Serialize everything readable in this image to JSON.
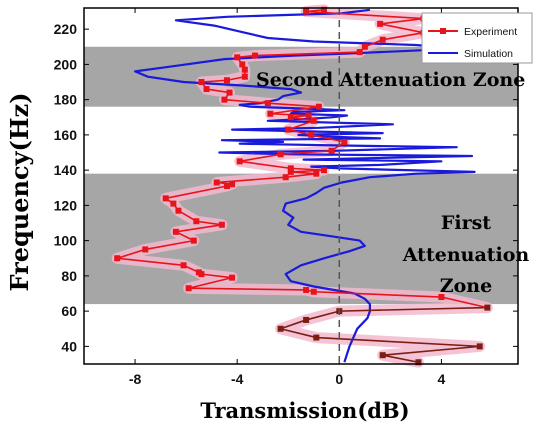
{
  "chart_data": {
    "type": "line",
    "xlabel": "Transmission(dB)",
    "ylabel": "Frequency(Hz)",
    "xlim": [
      -10,
      7
    ],
    "ylim": [
      30,
      232
    ],
    "xticks": [
      -8,
      -4,
      0,
      4
    ],
    "xtick_labels": [
      "-8",
      "-4",
      "0",
      "4"
    ],
    "yticks": [
      40,
      60,
      80,
      100,
      120,
      140,
      160,
      180,
      200,
      220
    ],
    "ytick_labels": [
      "40",
      "60",
      "80",
      "100",
      "120",
      "140",
      "160",
      "180",
      "200",
      "220"
    ],
    "zero_line_x": 0,
    "legend_position": "top-right",
    "zones": [
      {
        "label_lines": [
          "First",
          "Attenuation",
          "Zone"
        ],
        "y_from": 64,
        "y_to": 138,
        "color": "#a6a6a6"
      },
      {
        "label_lines": [
          "Second Attenuation Zone"
        ],
        "y_from": 176,
        "y_to": 210,
        "color": "#a6a6a6"
      }
    ],
    "series": [
      {
        "name": "Experiment",
        "color": "#e8141c",
        "band_color": "#f2b9cf",
        "marker": "square",
        "points": [
          [
            3.1,
            31
          ],
          [
            1.7,
            35
          ],
          [
            5.5,
            40
          ],
          [
            -0.9,
            45
          ],
          [
            -2.3,
            50
          ],
          [
            -1.3,
            55
          ],
          [
            0,
            60
          ],
          [
            5.8,
            62
          ],
          [
            4,
            68
          ],
          [
            -1,
            71
          ],
          [
            -1.3,
            72
          ],
          [
            -5.9,
            73
          ],
          [
            -4.2,
            79
          ],
          [
            -5.4,
            81
          ],
          [
            -5.5,
            82
          ],
          [
            -6.1,
            86
          ],
          [
            -8.7,
            90
          ],
          [
            -7.6,
            95
          ],
          [
            -5.7,
            100
          ],
          [
            -6.4,
            105
          ],
          [
            -4.6,
            109
          ],
          [
            -5.6,
            111
          ],
          [
            -6.3,
            117
          ],
          [
            -6.5,
            121
          ],
          [
            -6.8,
            124
          ],
          [
            -4.4,
            131
          ],
          [
            -4.2,
            132
          ],
          [
            -4.8,
            133
          ],
          [
            -2.1,
            136
          ],
          [
            -0.9,
            138
          ],
          [
            -1.9,
            139
          ],
          [
            -0.6,
            140
          ],
          [
            -1.9,
            141
          ],
          [
            -3.9,
            145
          ],
          [
            -2.3,
            149
          ],
          [
            -0.3,
            151
          ],
          [
            0.2,
            156
          ],
          [
            -1.1,
            160
          ],
          [
            -2,
            163
          ],
          [
            -1,
            168
          ],
          [
            -1.9,
            170
          ],
          [
            -1.2,
            171
          ],
          [
            -2.7,
            172
          ],
          [
            -0.8,
            176
          ],
          [
            -2.8,
            178
          ],
          [
            -4.5,
            180
          ],
          [
            -4.3,
            184
          ],
          [
            -5.2,
            186
          ],
          [
            -5.4,
            190
          ],
          [
            -4.4,
            191
          ],
          [
            -3.7,
            193
          ],
          [
            -3.7,
            197
          ],
          [
            -3.8,
            200
          ],
          [
            -4,
            204
          ],
          [
            -3.3,
            205
          ],
          [
            0.8,
            207
          ],
          [
            1,
            210
          ],
          [
            1.7,
            214
          ],
          [
            3.3,
            218
          ],
          [
            1.6,
            223
          ],
          [
            3.3,
            226
          ],
          [
            -1.3,
            230
          ],
          [
            -0.6,
            231
          ]
        ]
      },
      {
        "name": "Simulation",
        "color": "#1a1adc",
        "points": [
          [
            0.2,
            31
          ],
          [
            0.4,
            40
          ],
          [
            0.7,
            50
          ],
          [
            1.1,
            56
          ],
          [
            1.2,
            60
          ],
          [
            1.2,
            64
          ],
          [
            1,
            67
          ],
          [
            0.6,
            70
          ],
          [
            -0.2,
            72
          ],
          [
            -1,
            74
          ],
          [
            -1.9,
            77
          ],
          [
            -2.1,
            81
          ],
          [
            -1.5,
            86
          ],
          [
            -0.6,
            90
          ],
          [
            0.4,
            94
          ],
          [
            1,
            97
          ],
          [
            0.8,
            100
          ],
          [
            -0.1,
            102
          ],
          [
            -1.5,
            105
          ],
          [
            -2,
            109
          ],
          [
            -1.8,
            113
          ],
          [
            -2.2,
            117
          ],
          [
            -2.1,
            121
          ],
          [
            -1.3,
            124
          ],
          [
            -0.9,
            127
          ],
          [
            -0.6,
            130
          ],
          [
            0.1,
            133
          ],
          [
            1.2,
            136
          ],
          [
            3,
            138
          ],
          [
            5.3,
            139
          ],
          [
            2.6,
            140
          ],
          [
            0,
            141
          ],
          [
            -1.1,
            142
          ],
          [
            1.6,
            143
          ],
          [
            4,
            145
          ],
          [
            -1.4,
            146
          ],
          [
            5.2,
            148
          ],
          [
            -1.8,
            149
          ],
          [
            -4.7,
            150
          ],
          [
            -0.2,
            151
          ],
          [
            4.6,
            153
          ],
          [
            0.1,
            154
          ],
          [
            -3.9,
            155
          ],
          [
            -2.2,
            156
          ],
          [
            -4.6,
            157
          ],
          [
            1.6,
            158
          ],
          [
            -0.3,
            159
          ],
          [
            -1.6,
            160
          ],
          [
            1.7,
            161
          ],
          [
            -1.3,
            162
          ],
          [
            -4.2,
            163
          ],
          [
            -0.8,
            164
          ],
          [
            2.1,
            166
          ],
          [
            -2.8,
            168
          ],
          [
            -1.3,
            169
          ],
          [
            -0.3,
            170
          ],
          [
            0.3,
            171
          ],
          [
            -1.9,
            172
          ],
          [
            -1.8,
            173
          ],
          [
            0.2,
            174
          ],
          [
            -1.4,
            175
          ],
          [
            -3.5,
            176
          ],
          [
            -3.9,
            177
          ],
          [
            -3.1,
            178
          ],
          [
            -2.4,
            180
          ],
          [
            -2.2,
            182
          ],
          [
            -1.5,
            184
          ],
          [
            -1.9,
            186
          ],
          [
            -3.8,
            188
          ],
          [
            -6.1,
            190
          ],
          [
            -7.5,
            193
          ],
          [
            -8,
            196
          ],
          [
            -6.5,
            199
          ],
          [
            -4.5,
            203
          ],
          [
            -1.8,
            205
          ],
          [
            0.1,
            206
          ],
          [
            3.2,
            208
          ],
          [
            4.7,
            209
          ],
          [
            3,
            211
          ],
          [
            -1,
            213
          ],
          [
            -2.8,
            215
          ],
          [
            -3.7,
            218
          ],
          [
            -4.9,
            222
          ],
          [
            -6.4,
            225
          ],
          [
            -4.4,
            227
          ],
          [
            -2.1,
            228
          ],
          [
            0.1,
            229
          ],
          [
            1.2,
            231
          ]
        ]
      }
    ]
  }
}
